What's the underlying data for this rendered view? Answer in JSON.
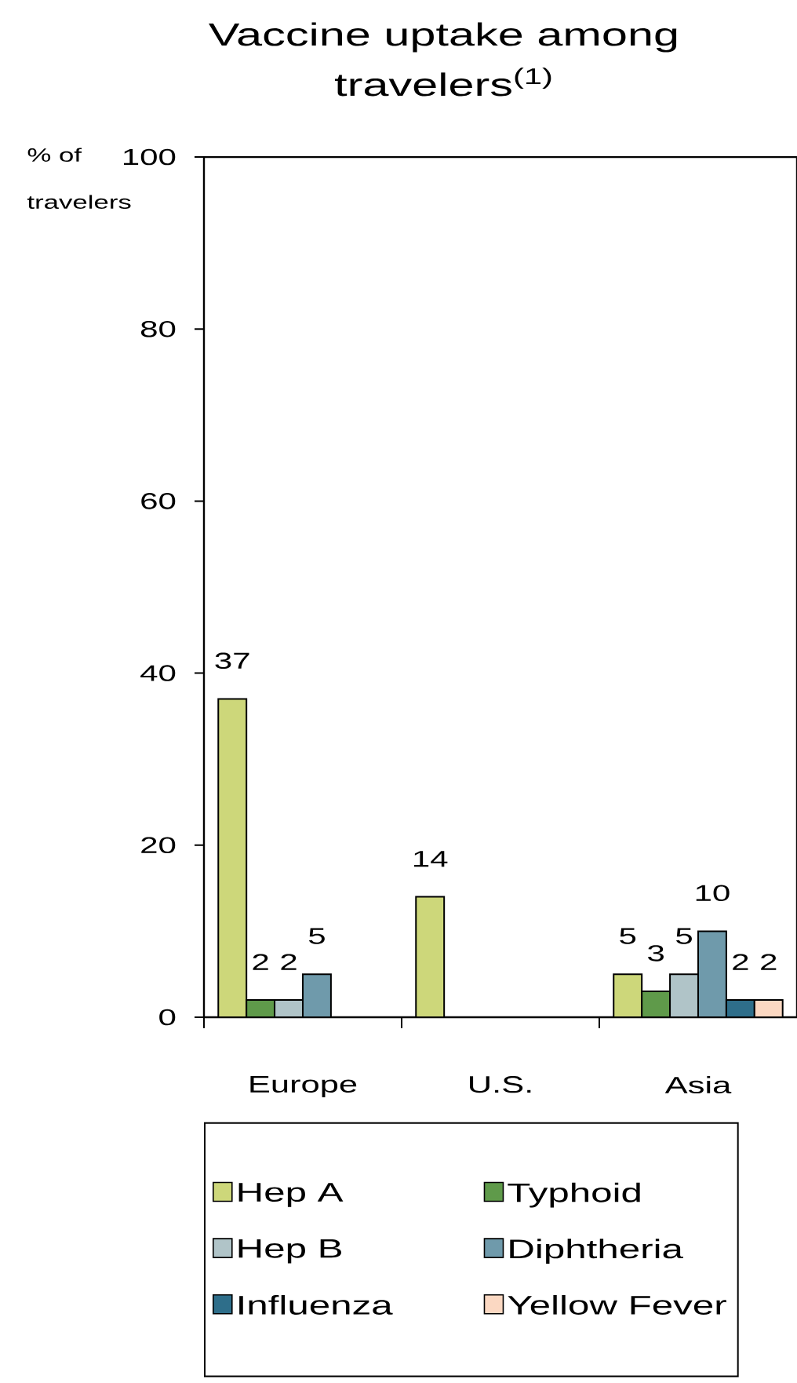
{
  "chart_data": {
    "type": "bar",
    "title": "Vaccine uptake among travelers$^{(1)}$",
    "ylabel": "% of travelers",
    "categories": [
      "Europe",
      "U.S.",
      "Asia"
    ],
    "series": [
      {
        "name": "Hep A",
        "color": "#cdd77a",
        "values": [
          37,
          14,
          5
        ]
      },
      {
        "name": "Typhoid",
        "color": "#5f9a4a",
        "values": [
          2,
          null,
          3
        ]
      },
      {
        "name": "Hep B",
        "color": "#b0c4c8",
        "values": [
          2,
          null,
          5
        ]
      },
      {
        "name": "Diphtheria",
        "color": "#6f9aab",
        "values": [
          5,
          null,
          10
        ]
      },
      {
        "name": "Influenza",
        "color": "#2e6e8a",
        "values": [
          null,
          null,
          2
        ]
      },
      {
        "name": "Yellow Fever",
        "color": "#fbd8c2",
        "values": [
          null,
          null,
          2
        ]
      }
    ],
    "ylim": [
      0,
      100
    ],
    "yticks": [
      0,
      20,
      40,
      60,
      80,
      100
    ],
    "data_labels": true,
    "legend": "bottom"
  }
}
